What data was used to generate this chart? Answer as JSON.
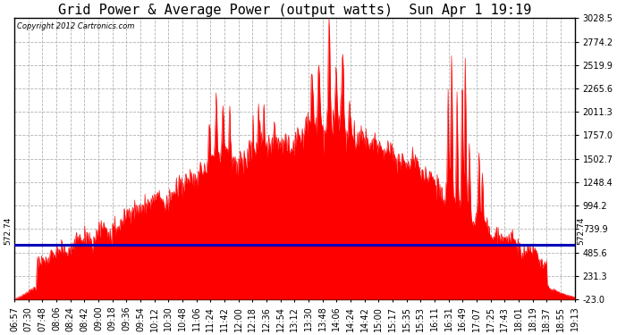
{
  "title": "Grid Power & Average Power (output watts)  Sun Apr 1 19:19",
  "copyright": "Copyright 2012 Cartronics.com",
  "avg_line_value": 572.74,
  "avg_label": "572.74",
  "ylim": [
    -23.0,
    3028.5
  ],
  "yticks": [
    -23.0,
    231.3,
    485.6,
    739.9,
    994.2,
    1248.4,
    1502.7,
    1757.0,
    2011.3,
    2265.6,
    2519.9,
    2774.2,
    3028.5
  ],
  "background_color": "#ffffff",
  "plot_bg_color": "#ffffff",
  "fill_color": "#ff0000",
  "line_color": "#ff0000",
  "avg_line_color": "#0000bb",
  "grid_color": "#aaaaaa",
  "title_fontsize": 11,
  "tick_fontsize": 7,
  "x_tick_labels": [
    "06:57",
    "07:30",
    "07:48",
    "08:06",
    "08:24",
    "08:42",
    "09:00",
    "09:18",
    "09:36",
    "09:54",
    "10:12",
    "10:30",
    "10:48",
    "11:06",
    "11:24",
    "11:42",
    "12:00",
    "12:18",
    "12:36",
    "12:54",
    "13:12",
    "13:30",
    "13:48",
    "14:06",
    "14:24",
    "14:42",
    "15:00",
    "15:17",
    "15:35",
    "15:53",
    "16:11",
    "16:31",
    "16:49",
    "17:07",
    "17:25",
    "17:43",
    "18:01",
    "18:19",
    "18:37",
    "18:55",
    "19:13"
  ]
}
